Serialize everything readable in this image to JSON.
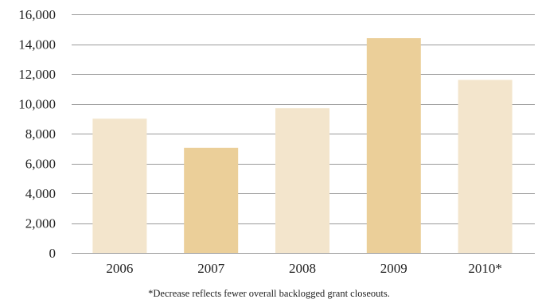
{
  "chart_data": {
    "type": "bar",
    "categories": [
      "2006",
      "2007",
      "2008",
      "2009",
      "2010*"
    ],
    "values": [
      9000,
      7050,
      9700,
      14400,
      11600
    ],
    "ylim": [
      0,
      16000
    ],
    "yticks": [
      0,
      2000,
      4000,
      6000,
      8000,
      10000,
      12000,
      14000,
      16000
    ],
    "ytick_labels": [
      "0",
      "2,000",
      "4,000",
      "6,000",
      "8,000",
      "10,000",
      "12,000",
      "14,000",
      "16,000"
    ],
    "grid": "horizontal",
    "bar_colors": [
      "#f3e5cc",
      "#ebcf99",
      "#f3e5cc",
      "#ebcf99",
      "#f3e5cc"
    ],
    "title": "",
    "xlabel": "",
    "ylabel": ""
  },
  "footnote": "*Decrease reflects fewer overall backlogged grant closeouts.",
  "colors": {
    "grid": "#9a9a9a",
    "text": "#222222"
  }
}
